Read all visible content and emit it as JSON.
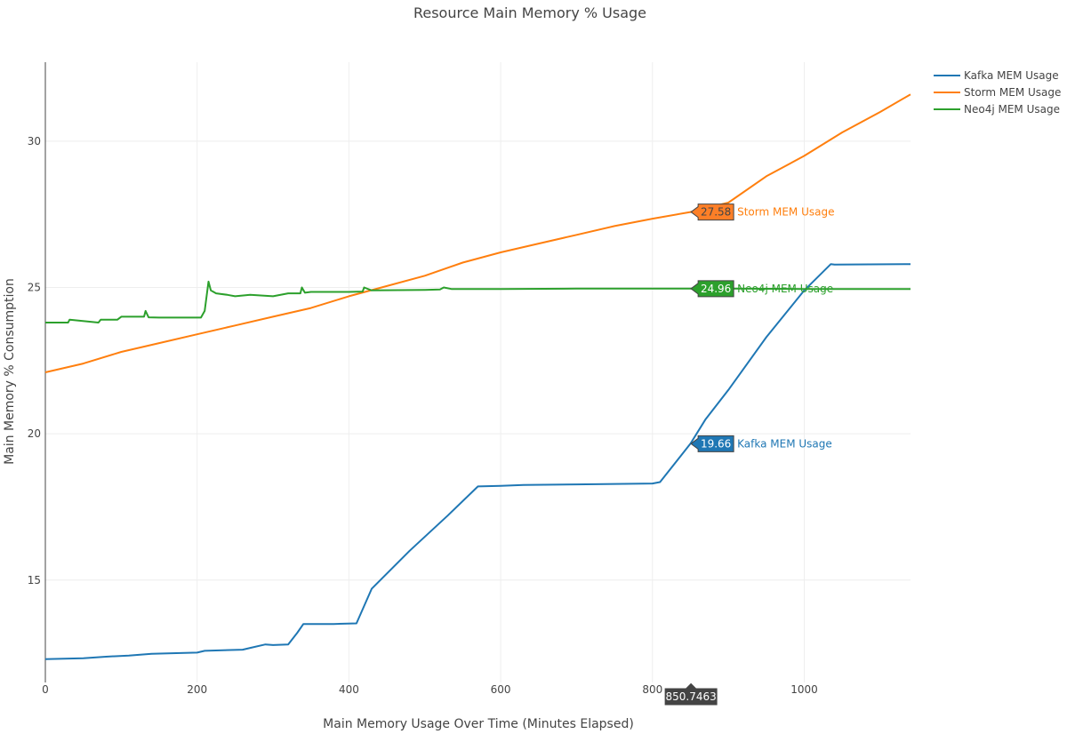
{
  "chart_data": {
    "type": "line",
    "title": "Resource Main Memory % Usage",
    "xlabel": "Main Memory Usage Over Time (Minutes Elapsed)",
    "ylabel": "Main Memory % Consumption",
    "xlim": [
      0,
      1140
    ],
    "ylim": [
      11.5,
      32.7
    ],
    "x_ticks": [
      0,
      200,
      400,
      600,
      800,
      1000
    ],
    "y_ticks": [
      15,
      20,
      25,
      30
    ],
    "grid": true,
    "legend_position": "top-right",
    "series": [
      {
        "name": "Kafka MEM Usage",
        "color": "#1f77b4",
        "x": [
          0,
          50,
          80,
          110,
          140,
          200,
          210,
          260,
          270,
          290,
          300,
          320,
          332,
          340,
          380,
          410,
          430,
          480,
          530,
          570,
          600,
          630,
          700,
          800,
          810,
          850,
          870,
          900,
          950,
          1000,
          1035,
          1040,
          1140
        ],
        "y": [
          12.3,
          12.33,
          12.38,
          12.42,
          12.48,
          12.52,
          12.58,
          12.62,
          12.68,
          12.8,
          12.78,
          12.8,
          13.2,
          13.5,
          13.5,
          13.52,
          14.7,
          16.0,
          17.2,
          18.2,
          18.22,
          18.25,
          18.27,
          18.3,
          18.35,
          19.66,
          20.5,
          21.5,
          23.3,
          24.9,
          25.8,
          25.78,
          25.8
        ]
      },
      {
        "name": "Storm MEM Usage",
        "color": "#ff7f0e",
        "x": [
          0,
          50,
          100,
          150,
          200,
          250,
          300,
          350,
          400,
          450,
          500,
          550,
          600,
          650,
          700,
          750,
          800,
          850,
          900,
          950,
          1000,
          1050,
          1100,
          1140
        ],
        "y": [
          22.1,
          22.4,
          22.8,
          23.1,
          23.4,
          23.7,
          24.0,
          24.3,
          24.7,
          25.05,
          25.4,
          25.85,
          26.2,
          26.5,
          26.8,
          27.1,
          27.35,
          27.58,
          27.9,
          28.8,
          29.5,
          30.3,
          31.0,
          31.6
        ]
      },
      {
        "name": "Neo4j MEM Usage",
        "color": "#2ca02c",
        "x": [
          0,
          30,
          32,
          70,
          73,
          95,
          100,
          130,
          132,
          136,
          150,
          205,
          210,
          215,
          218,
          225,
          240,
          250,
          270,
          300,
          320,
          336,
          338,
          342,
          350,
          400,
          418,
          420,
          430,
          500,
          520,
          525,
          535,
          600,
          700,
          800,
          900,
          1000,
          1140
        ],
        "y": [
          23.8,
          23.8,
          23.9,
          23.8,
          23.9,
          23.9,
          24.0,
          24.0,
          24.2,
          23.98,
          23.97,
          23.97,
          24.2,
          25.2,
          24.9,
          24.8,
          24.75,
          24.7,
          24.75,
          24.7,
          24.8,
          24.8,
          25.0,
          24.82,
          24.85,
          24.85,
          24.86,
          25.0,
          24.9,
          24.92,
          24.93,
          25.0,
          24.95,
          24.95,
          24.96,
          24.96,
          24.96,
          24.95,
          24.95
        ]
      }
    ],
    "hover": {
      "x": 850.7463,
      "x_label": "850.7463",
      "points": [
        {
          "series": "Storm MEM Usage",
          "value": 27.58,
          "value_label": "27.58"
        },
        {
          "series": "Neo4j MEM Usage",
          "value": 24.96,
          "value_label": "24.96"
        },
        {
          "series": "Kafka MEM Usage",
          "value": 19.66,
          "value_label": "19.66"
        }
      ]
    }
  }
}
